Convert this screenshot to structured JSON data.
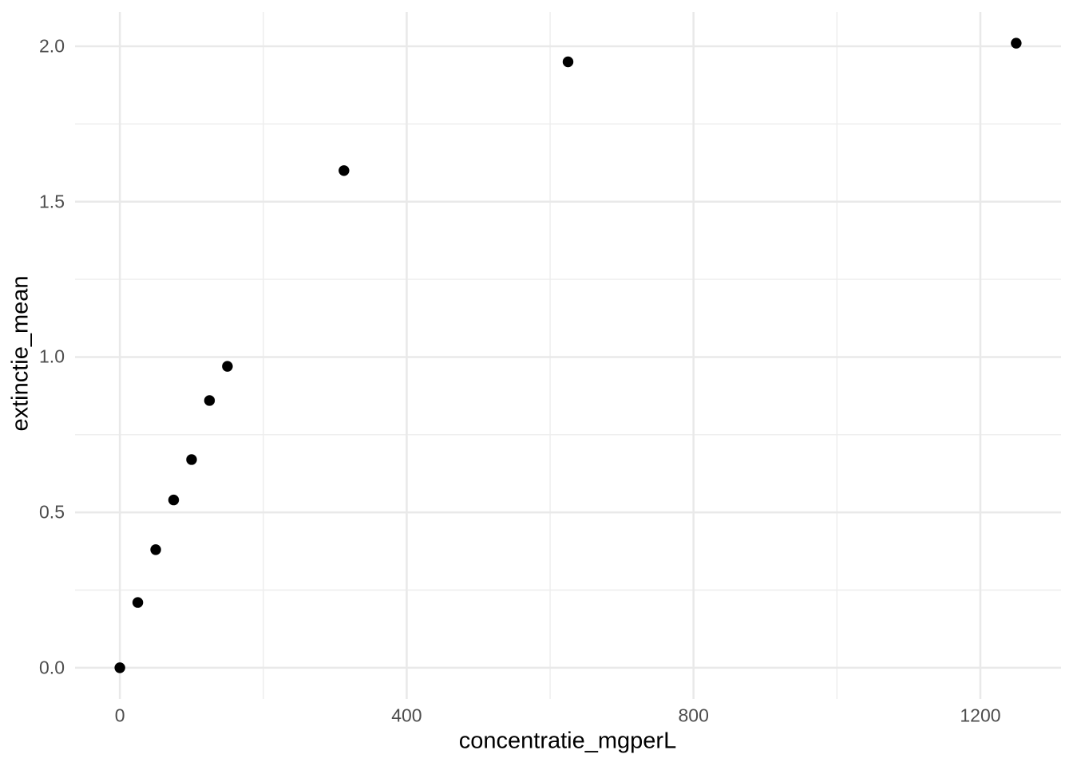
{
  "chart_data": {
    "type": "scatter",
    "title": "",
    "xlabel": "concentratie_mgperL",
    "ylabel": "extinctie_mean",
    "points": [
      {
        "x": 0,
        "y": 0.0
      },
      {
        "x": 25,
        "y": 0.21
      },
      {
        "x": 50,
        "y": 0.38
      },
      {
        "x": 75,
        "y": 0.54
      },
      {
        "x": 100,
        "y": 0.67
      },
      {
        "x": 125,
        "y": 0.86
      },
      {
        "x": 150,
        "y": 0.97
      },
      {
        "x": 312.5,
        "y": 1.6
      },
      {
        "x": 625,
        "y": 1.95
      },
      {
        "x": 1250,
        "y": 2.01
      }
    ],
    "xlim": [
      -62.5,
      1312.5
    ],
    "ylim": [
      -0.1005,
      2.1105
    ],
    "x_major_ticks": [
      0,
      400,
      800,
      1200
    ],
    "x_tick_labels": [
      "0",
      "400",
      "800",
      "1200"
    ],
    "x_minor_ticks": [
      200,
      600,
      1000
    ],
    "y_major_ticks": [
      0.0,
      0.5,
      1.0,
      1.5,
      2.0
    ],
    "y_tick_labels": [
      "0.0",
      "0.5",
      "1.0",
      "1.5",
      "2.0"
    ],
    "y_minor_ticks": [
      0.25,
      0.75,
      1.25,
      1.75
    ],
    "grid": true,
    "legend": false,
    "background_color": "#ffffff",
    "grid_major_color": "#e9e9e9",
    "grid_minor_color": "#ededed",
    "tick_label_color": "#4d4d4d",
    "axis_title_color": "#000000",
    "point_color": "#000000",
    "point_radius_px": 6.7
  }
}
